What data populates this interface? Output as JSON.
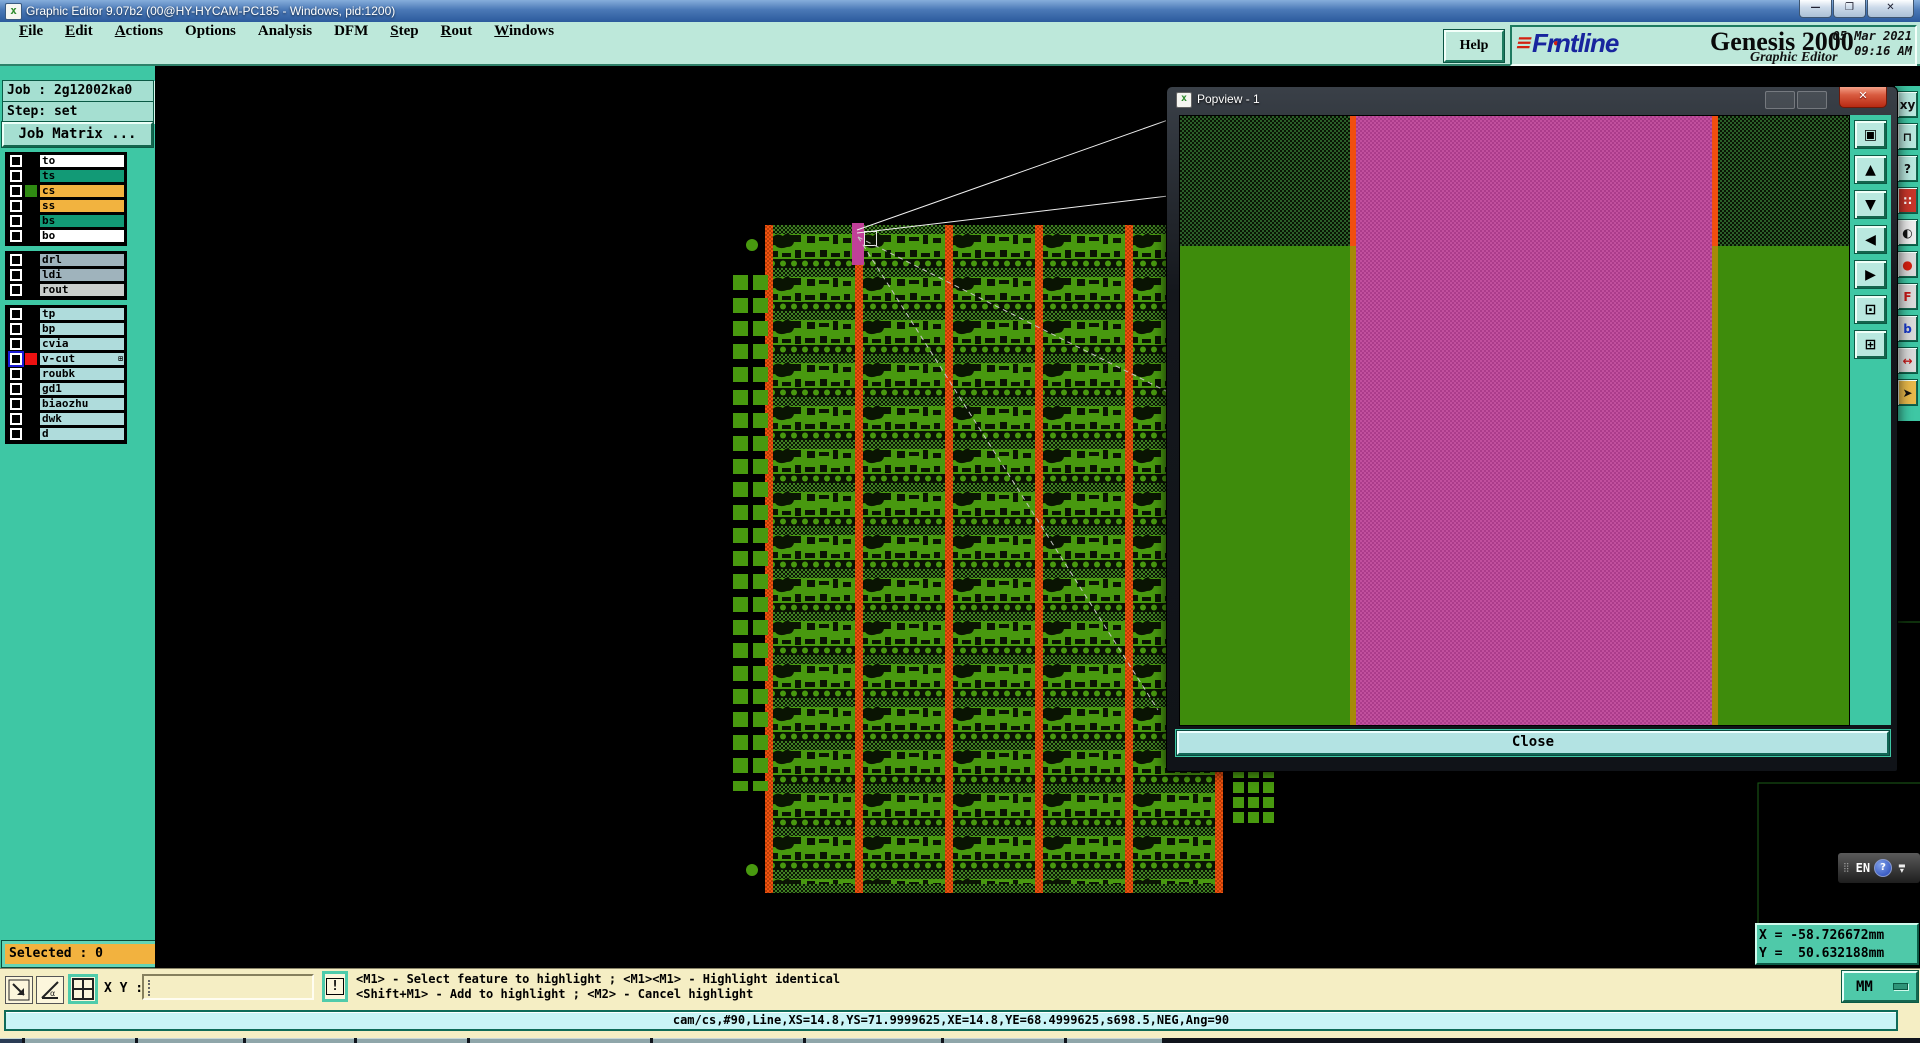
{
  "window": {
    "title": "Graphic Editor 9.07b2 (00@HY-HYCAM-PC185 - Windows, pid:1200)",
    "controls": {
      "minimize": "—",
      "maximize": "❐",
      "close": "✕"
    }
  },
  "menu": {
    "items": [
      {
        "label": "File",
        "u": true
      },
      {
        "label": "Edit",
        "u": true
      },
      {
        "label": "Actions",
        "u": true
      },
      {
        "label": "Options",
        "u": false
      },
      {
        "label": "Analysis",
        "u": false
      },
      {
        "label": "DFM",
        "u": false
      },
      {
        "label": "Step",
        "u": true
      },
      {
        "label": "Rout",
        "u": true
      },
      {
        "label": "Windows",
        "u": true
      }
    ],
    "help_label": "Help"
  },
  "brand": {
    "logo_text": "Frontline",
    "product": "Genesis 2000",
    "subtitle": "Graphic Editor",
    "date": "05 Mar 2021",
    "time": "09:16 AM"
  },
  "sidebar": {
    "job_label": "Job : 2g12002ka0",
    "step_label": "Step: set",
    "job_matrix_button": "Job Matrix ...",
    "layer_groups": [
      {
        "layers": [
          {
            "name": "to",
            "row_color": "#FFFFFF"
          },
          {
            "name": "ts",
            "row_color": "#129A76"
          },
          {
            "name": "cs",
            "row_color": "#F2B33F",
            "swatch": "#2F8A12"
          },
          {
            "name": "ss",
            "row_color": "#F2B33F"
          },
          {
            "name": "bs",
            "row_color": "#129A76"
          },
          {
            "name": "bo",
            "row_color": "#FFFFFF"
          }
        ]
      },
      {
        "layers": [
          {
            "name": "drl",
            "row_color": "#9FB3BC"
          },
          {
            "name": "ldi",
            "row_color": "#9FB3BC"
          },
          {
            "name": "rout",
            "row_color": "#C9CDCB"
          }
        ]
      },
      {
        "layers": [
          {
            "name": "tp",
            "row_color": "#AFDCDC"
          },
          {
            "name": "bp",
            "row_color": "#AFDCDC"
          },
          {
            "name": "cvia",
            "row_color": "#AFDCDC"
          },
          {
            "name": "v-cut",
            "row_color": "#AFDCDC",
            "swatch": "#EE1111",
            "active": true,
            "badge": "⊞"
          },
          {
            "name": "roubk",
            "row_color": "#AFDCDC"
          },
          {
            "name": "gd1",
            "row_color": "#AFDCDC"
          },
          {
            "name": "biaozhu",
            "row_color": "#AFDCDC"
          },
          {
            "name": "dwk",
            "row_color": "#AFDCDC"
          },
          {
            "name": "d",
            "row_color": "#AFDCDC"
          }
        ]
      }
    ],
    "selected_label": "Selected : 0"
  },
  "popview": {
    "title": "Popview - 1",
    "close_x": "✕",
    "close_button": "Close",
    "toolbar_icons": [
      {
        "name": "copy-view-icon",
        "glyph": "▣"
      },
      {
        "name": "pan-up-icon",
        "glyph": "▲"
      },
      {
        "name": "pan-down-icon",
        "glyph": "▼"
      },
      {
        "name": "pan-left-icon",
        "glyph": "◀"
      },
      {
        "name": "pan-right-icon",
        "glyph": "▶"
      },
      {
        "name": "zoom-fit-icon",
        "glyph": "⊡"
      },
      {
        "name": "zoom-expand-icon",
        "glyph": "⊞"
      }
    ]
  },
  "right_toolbar_icons": [
    {
      "name": "xy-window-icon",
      "glyph": "xy",
      "bg": "#B9E8DF",
      "fg": "#111111"
    },
    {
      "name": "shape-window-icon",
      "glyph": "⊓",
      "bg": "#B9E8DF",
      "fg": "#111111"
    },
    {
      "name": "help-tool-icon",
      "glyph": "?",
      "bg": "#B9E8DF",
      "fg": "#111111"
    },
    {
      "name": "drill-panel-icon",
      "glyph": "∷",
      "bg": "#C8362A",
      "fg": "#FFFFFF"
    },
    {
      "name": "pad-shape-icon",
      "glyph": "◐",
      "bg": "#ECECEC",
      "fg": "#111111"
    },
    {
      "name": "add-point-icon",
      "glyph": "●",
      "bg": "#DADADA",
      "fg": "#D42010"
    },
    {
      "name": "font-tool-icon",
      "glyph": "F",
      "bg": "#DADADA",
      "fg": "#C41818"
    },
    {
      "name": "blue-shape-icon",
      "glyph": "b",
      "bg": "#DADADA",
      "fg": "#1838C8"
    },
    {
      "name": "measure-icon",
      "glyph": "↔",
      "bg": "#DADADA",
      "fg": "#C41818"
    },
    {
      "name": "select-cursor-icon",
      "glyph": "➤",
      "bg": "#E8B94B",
      "fg": "#111111"
    }
  ],
  "statusbar": {
    "xy_label": "X Y :",
    "xy_value": "",
    "alert_label": "!",
    "hint_line1": "<M1> - Select feature to highlight ; <M1><M1> - Highlight identical",
    "hint_line2": "<Shift+M1> - Add to highlight ; <M2> - Cancel highlight",
    "feature_info": "cam/cs,#90,Line,XS=14.8,YS=71.9999625,XE=14.8,YE=68.4999625,s698.5,NEG,Ang=90",
    "coords": "X = -58.726672mm\nY =  50.632188mm",
    "units": "MM"
  },
  "langbar": {
    "label": "EN",
    "help": "?"
  },
  "taskbar": {
    "segments": [
      22,
      110,
      105,
      108,
      110,
      180,
      150,
      135,
      120,
      95
    ]
  },
  "colors": {
    "accent_teal": "#3EC7A4",
    "menu_bg": "#BDE8DA",
    "cream": "#F5EEC4",
    "info_cyan": "#C9F4F6",
    "selected_orange": "#F2B23F",
    "board_green": "#48990F",
    "strip_orange": "#F1530F",
    "popview_magenta": "#C1509E",
    "highlight_magenta": "#C04098"
  }
}
